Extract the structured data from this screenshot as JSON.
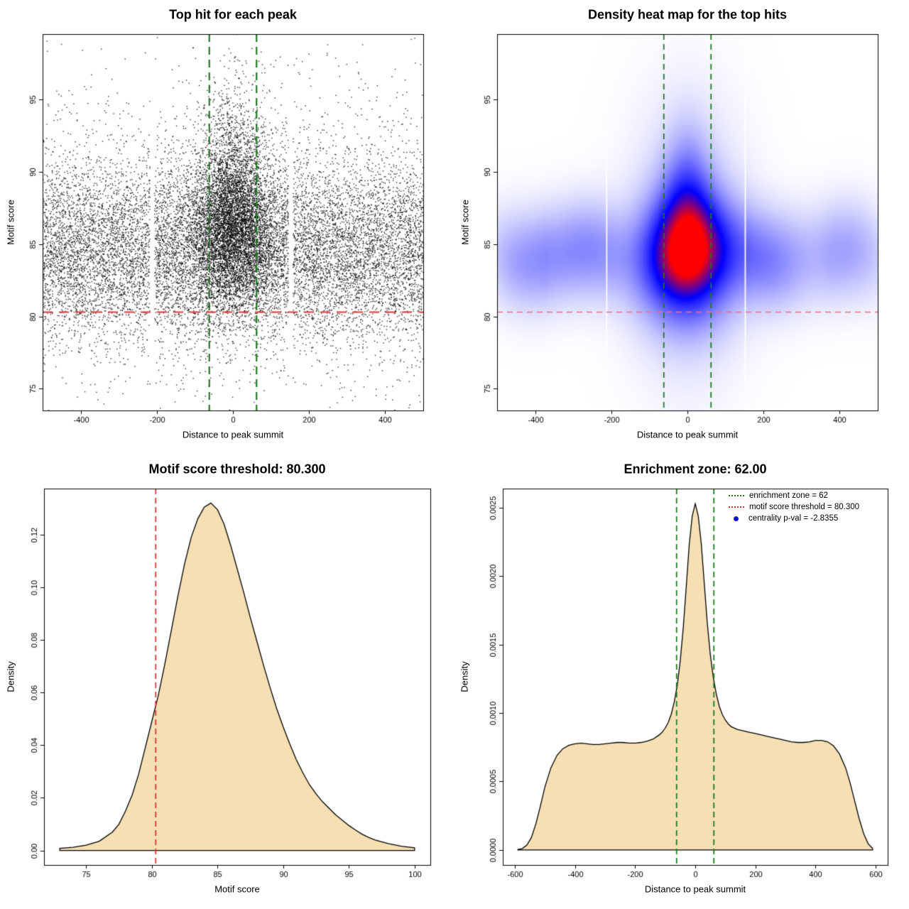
{
  "background": "#ffffff",
  "chart_data": [
    {
      "type": "scatter",
      "title": "Top hit for each peak",
      "xlabel": "Distance to peak summit",
      "ylabel": "Motif score",
      "xlim": [
        -500,
        500
      ],
      "ylim": [
        73.5,
        99.5
      ],
      "xticks": [
        -400,
        -200,
        0,
        200,
        400
      ],
      "yticks": [
        75,
        80,
        85,
        90,
        95
      ],
      "hlines": [
        {
          "y": 80.3,
          "color": "#f03030",
          "dash": [
            14,
            9
          ],
          "width": 2
        }
      ],
      "vlines": [
        {
          "x": -62,
          "color": "#1f7a1f",
          "dash": [
            11,
            7
          ],
          "width": 2.2
        },
        {
          "x": 62,
          "color": "#1f7a1f",
          "dash": [
            11,
            7
          ],
          "width": 2.2
        }
      ],
      "points": {
        "seed": 1337,
        "color": "#000000",
        "gaps_x": [
          [
            -218,
            -206
          ],
          [
            146,
            158
          ]
        ],
        "clusters": [
          {
            "n": 10500,
            "x_dist": "uniform",
            "x_min": -500,
            "x_max": 500,
            "y_mean": 84.4,
            "y_sd": 3.0
          },
          {
            "n": 2600,
            "x_dist": "uniform",
            "x_min": -500,
            "x_max": 500,
            "y_mean": 85.3,
            "y_sd": 5.3
          },
          {
            "n": 4300,
            "x_dist": "normal",
            "x_mean": 0,
            "x_sd": 52,
            "y_mean": 85.8,
            "y_sd": 2.7
          },
          {
            "n": 1100,
            "x_dist": "normal",
            "x_mean": 0,
            "x_sd": 44,
            "y_mean": 90.6,
            "y_sd": 3.1
          },
          {
            "n": 1400,
            "x_dist": "normal",
            "x_mean": 0,
            "x_sd": 120,
            "y_mean": 86.0,
            "y_sd": 3.2
          }
        ]
      }
    },
    {
      "type": "heatmap",
      "title": "Density heat map for the top hits",
      "xlabel": "Distance to peak summit",
      "ylabel": "Motif score",
      "xlim": [
        -500,
        500
      ],
      "ylim": [
        73.5,
        99.5
      ],
      "xticks": [
        -400,
        -200,
        0,
        200,
        400
      ],
      "yticks": [
        75,
        80,
        85,
        90,
        95
      ],
      "hlines": [
        {
          "y": 80.3,
          "color": "#ff6b6b",
          "dash": [
            8,
            6
          ],
          "width": 1.5
        }
      ],
      "vlines": [
        {
          "x": -62,
          "color": "#1f7a1f",
          "dash": [
            8,
            6
          ],
          "width": 1.8
        },
        {
          "x": 62,
          "color": "#1f7a1f",
          "dash": [
            8,
            6
          ],
          "width": 1.8
        }
      ],
      "density_model": {
        "band": {
          "y_center": 84.2,
          "y_sd": 2.1,
          "amplitude": 0.5,
          "wobble": 0.35
        },
        "blobs": [
          {
            "x_sd": 62,
            "y_center": 85.1,
            "y_sd": 2.5,
            "amplitude": 1.0
          },
          {
            "x_sd": 38,
            "y_center": 88.0,
            "y_sd": 3.0,
            "amplitude": 0.45
          },
          {
            "x_sd": 80,
            "y_center": 83.2,
            "y_sd": 2.8,
            "amplitude": 0.5
          },
          {
            "x_sd": 90,
            "y_center": 85.5,
            "y_sd": 5.5,
            "amplitude": 0.18
          }
        ]
      },
      "artifact_lines_x": [
        -212,
        152
      ],
      "colormap": [
        "#ffffff",
        "#0000ff",
        "#ff0000"
      ]
    },
    {
      "type": "area",
      "title": "Motif score threshold: 80.300",
      "xlabel": "Motif score",
      "ylabel": "Density",
      "xlim": [
        71.8,
        101.2
      ],
      "ylim": [
        -0.0055,
        0.1375
      ],
      "xticks": [
        75,
        80,
        85,
        90,
        95,
        100
      ],
      "yticks": [
        0,
        0.02,
        0.04,
        0.06,
        0.08,
        0.1,
        0.12
      ],
      "ytick_labels": [
        "0.00",
        "0.02",
        "0.04",
        "0.06",
        "0.08",
        "0.10",
        "0.12"
      ],
      "fill": "#f5dfb3",
      "line_color": "#000000",
      "vlines": [
        {
          "x": 80.3,
          "color": "#d63333",
          "dash": [
            8,
            5
          ],
          "width": 1.8
        }
      ],
      "x": [
        73,
        74,
        75,
        76,
        77,
        77.5,
        78,
        78.5,
        79,
        79.5,
        80,
        80.5,
        81,
        81.5,
        82,
        82.5,
        83,
        83.5,
        84,
        84.5,
        85,
        85.5,
        86,
        86.5,
        87,
        87.5,
        88,
        88.5,
        89,
        89.5,
        90,
        90.5,
        91,
        91.5,
        92,
        92.5,
        93,
        93.5,
        94,
        94.5,
        95,
        95.5,
        96,
        96.5,
        97,
        98,
        99,
        100
      ],
      "y": [
        0.0008,
        0.0012,
        0.002,
        0.0035,
        0.007,
        0.01,
        0.015,
        0.021,
        0.029,
        0.039,
        0.049,
        0.059,
        0.071,
        0.084,
        0.097,
        0.109,
        0.119,
        0.126,
        0.1305,
        0.132,
        0.1295,
        0.124,
        0.116,
        0.107,
        0.098,
        0.0885,
        0.0795,
        0.0705,
        0.062,
        0.054,
        0.047,
        0.0405,
        0.0345,
        0.0295,
        0.025,
        0.0215,
        0.0185,
        0.016,
        0.0135,
        0.0115,
        0.0095,
        0.0078,
        0.0062,
        0.005,
        0.004,
        0.0026,
        0.0016,
        0.001
      ]
    },
    {
      "type": "area",
      "title": "Enrichment zone: 62.00",
      "xlabel": "Distance to peak summit",
      "ylabel": "Density",
      "xlim": [
        -640,
        640
      ],
      "ylim": [
        -0.00011,
        0.00264
      ],
      "xticks": [
        -600,
        -400,
        -200,
        0,
        200,
        400,
        600
      ],
      "yticks": [
        0,
        0.0005,
        0.001,
        0.0015,
        0.002,
        0.0025
      ],
      "ytick_labels": [
        "0.0000",
        "0.0005",
        "0.0010",
        "0.0015",
        "0.0020",
        "0.0025"
      ],
      "fill": "#f5dfb3",
      "line_color": "#000000",
      "vlines": [
        {
          "x": -62,
          "color": "#1f7a1f",
          "dash": [
            8,
            5
          ],
          "width": 1.8
        },
        {
          "x": 62,
          "color": "#1f7a1f",
          "dash": [
            8,
            5
          ],
          "width": 1.8
        }
      ],
      "x": [
        -590,
        -575,
        -560,
        -545,
        -530,
        -515,
        -500,
        -480,
        -460,
        -440,
        -420,
        -400,
        -380,
        -360,
        -340,
        -320,
        -300,
        -280,
        -260,
        -240,
        -220,
        -200,
        -180,
        -160,
        -140,
        -120,
        -110,
        -100,
        -90,
        -80,
        -70,
        -60,
        -50,
        -40,
        -30,
        -20,
        -10,
        0,
        10,
        20,
        30,
        40,
        50,
        60,
        70,
        80,
        90,
        100,
        110,
        120,
        140,
        160,
        180,
        200,
        220,
        240,
        260,
        280,
        300,
        320,
        340,
        360,
        380,
        400,
        420,
        440,
        460,
        480,
        500,
        515,
        530,
        545,
        560,
        575,
        590
      ],
      "y": [
        3e-06,
        1e-05,
        3.5e-05,
        9e-05,
        0.00019,
        0.00032,
        0.00046,
        0.0006,
        0.00069,
        0.00074,
        0.000765,
        0.000775,
        0.00078,
        0.000775,
        0.00077,
        0.00077,
        0.000775,
        0.00078,
        0.000785,
        0.000785,
        0.00078,
        0.00078,
        0.000785,
        0.000795,
        0.00081,
        0.00084,
        0.00086,
        0.00089,
        0.00093,
        0.00099,
        0.00108,
        0.0012,
        0.00138,
        0.00162,
        0.00192,
        0.00223,
        0.00244,
        0.00253,
        0.00244,
        0.00224,
        0.00195,
        0.00166,
        0.00143,
        0.00126,
        0.00114,
        0.00105,
        0.00099,
        0.00095,
        0.00092,
        0.0009,
        0.00088,
        0.00087,
        0.00086,
        0.00085,
        0.00084,
        0.00083,
        0.00082,
        0.00081,
        0.0008,
        0.00079,
        0.000785,
        0.000785,
        0.00079,
        0.0008,
        0.0008,
        0.00079,
        0.00076,
        0.0007,
        0.0006,
        0.00049,
        0.00036,
        0.00023,
        0.00012,
        4.5e-05,
        1e-05
      ],
      "legend": [
        {
          "label": "enrichment zone = 62",
          "color": "#1f7a1f",
          "marker": "dotted-line"
        },
        {
          "label": "motif score threshold = 80.300",
          "color": "#e03131",
          "marker": "dotted-line"
        },
        {
          "label": "centrality p-val = -2.8355",
          "color": "#1414c8",
          "marker": "dot"
        }
      ]
    }
  ]
}
